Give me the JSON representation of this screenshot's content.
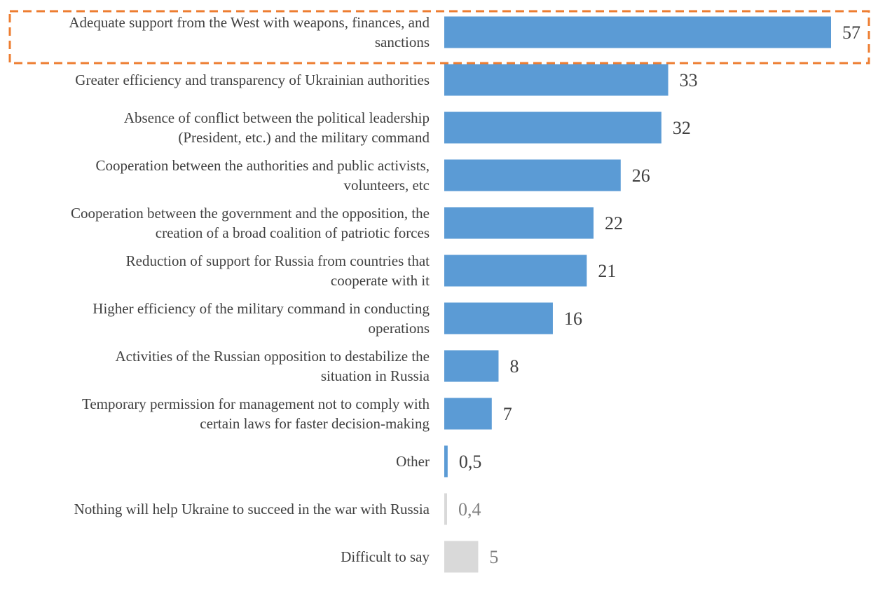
{
  "chart_data": {
    "type": "bar",
    "orientation": "horizontal",
    "categories": [
      "Adequate support from the West with weapons, finances, and sanctions",
      "Greater efficiency and transparency of Ukrainian authorities",
      "Absence of conflict between the political leadership (President, etc.) and the military command",
      "Cooperation between the authorities and public activists, volunteers, etc",
      "Cooperation between the government and the opposition, the creation of a broad coalition of patriotic forces",
      "Reduction of support for Russia from countries that cooperate with it",
      "Higher efficiency of the military command in conducting operations",
      "Activities of the Russian opposition to destabilize the situation in Russia",
      "Temporary permission for management not to comply with certain laws for faster decision-making",
      "Other",
      "Nothing will help Ukraine to succeed in the war with Russia",
      "Difficult to say"
    ],
    "label_lines": [
      [
        "Adequate support from the West with weapons, finances, and",
        "sanctions"
      ],
      [
        "Greater efficiency and transparency of Ukrainian authorities"
      ],
      [
        "Absence of conflict between the political leadership",
        "(President, etc.) and the military command"
      ],
      [
        "Cooperation between the authorities and public activists,",
        "volunteers, etc"
      ],
      [
        "Cooperation between the government and the opposition, the",
        "creation of a broad coalition of patriotic forces"
      ],
      [
        "Reduction of support for Russia from countries that",
        "cooperate with it"
      ],
      [
        "Higher efficiency of the military command in conducting",
        "operations"
      ],
      [
        "Activities of the Russian opposition to destabilize the",
        "situation in Russia"
      ],
      [
        "Temporary permission for management not to comply with",
        "certain laws for faster decision-making"
      ],
      [
        "Other"
      ],
      [
        "Nothing will help Ukraine to succeed in the war with Russia"
      ],
      [
        "Difficult to say"
      ]
    ],
    "values": [
      57,
      33,
      32,
      26,
      22,
      21,
      16,
      8,
      7,
      0.5,
      0.4,
      5
    ],
    "value_labels": [
      "57",
      "33",
      "32",
      "26",
      "22",
      "21",
      "16",
      "8",
      "7",
      "0,5",
      "0,4",
      "5"
    ],
    "bar_colors": [
      "#5b9bd5",
      "#5b9bd5",
      "#5b9bd5",
      "#5b9bd5",
      "#5b9bd5",
      "#5b9bd5",
      "#5b9bd5",
      "#5b9bd5",
      "#5b9bd5",
      "#5b9bd5",
      "#d9d9d9",
      "#d9d9d9"
    ],
    "value_label_colors": [
      "#404040",
      "#404040",
      "#404040",
      "#404040",
      "#404040",
      "#404040",
      "#404040",
      "#404040",
      "#404040",
      "#404040",
      "#808080",
      "#808080"
    ],
    "highlight_index": 0,
    "highlight_color": "#ed7d31",
    "xlim": [
      0,
      60
    ],
    "grid": false,
    "legend": "none",
    "title": "",
    "xlabel": "",
    "ylabel": ""
  }
}
